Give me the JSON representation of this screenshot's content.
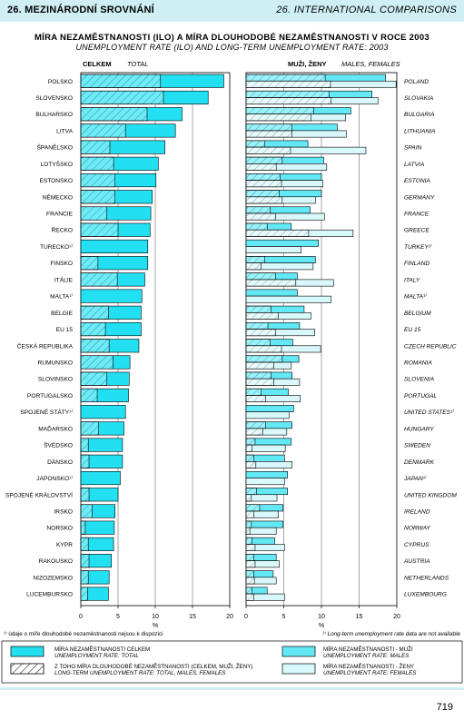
{
  "header": {
    "left": "26. MEZINÁRODNÍ SROVNÁNÍ",
    "right": "26. INTERNATIONAL COMPARISONS"
  },
  "title": "MÍRA NEZAMĚSTNANOSTI (ILO) A MÍRA DLOUHODOBÉ NEZAMĚSTNANOSTI V ROCE 2003",
  "subtitle": "UNEMPLOYMENT RATE (ILO) AND LONG-TERM UNEMPLOYMENT RATE: 2003",
  "page_number": "719",
  "colors": {
    "header_band": "#cfeff4",
    "total_fill": "#22e0f2",
    "males_fill": "#63e9f6",
    "females_fill": "#d8f8fb",
    "outline": "#000000"
  },
  "chart_data": [
    {
      "type": "bar",
      "orientation": "horizontal",
      "panel": "left",
      "header_cz": "CELKEM",
      "header_en": "TOTAL",
      "xlabel": "%",
      "xlim": [
        0,
        20
      ],
      "ticks": [
        "0",
        "5",
        "10",
        "15",
        "20"
      ],
      "categories": [
        "POLSKO",
        "SLOVENSKO",
        "BULHARSKO",
        "LITVA",
        "ŠPANĚLSKO",
        "LOTYŠSKO",
        "ESTONSKO",
        "NĚMECKO",
        "FRANCIE",
        "ŘECKO",
        "TURECKO¹⁾",
        "FINSKO",
        "ITÁLIE",
        "MALTA¹⁾",
        "BELGIE",
        "EU 15",
        "ČESKÁ REPUBLIKA",
        "RUMUNSKO",
        "SLOVINSKO",
        "PORTUGALSKO",
        "SPOJENÉ STÁTY¹⁾",
        "MAĎARSKO",
        "ŠVÉDSKO",
        "DÁNSKO",
        "JAPONSKO¹⁾",
        "SPOJENÉ KRÁLOVSTVÍ",
        "IRSKO",
        "NORSKO",
        "KYPR",
        "RAKOUSKO",
        "NIZOZEMSKO",
        "LUCEMBURSKO"
      ],
      "series": [
        {
          "name": "MÍRA NEZAMĚSTNANOSTI CELKEM",
          "values": [
            19.2,
            17.1,
            13.6,
            12.7,
            11.3,
            10.4,
            10.1,
            9.6,
            9.4,
            9.3,
            9.0,
            9.0,
            8.6,
            8.2,
            8.1,
            8.1,
            7.8,
            6.6,
            6.5,
            6.4,
            6.0,
            5.8,
            5.6,
            5.6,
            5.3,
            5.0,
            4.6,
            4.5,
            4.4,
            4.1,
            3.8,
            3.7
          ]
        },
        {
          "name": "Z TOHO MÍRA DLOUHODOBÉ NEZAMĚSTNANOSTI",
          "values": [
            10.7,
            11.1,
            8.9,
            6.0,
            3.9,
            4.4,
            4.6,
            4.6,
            3.5,
            5.0,
            null,
            2.3,
            4.9,
            null,
            3.7,
            3.3,
            3.8,
            4.3,
            3.5,
            2.2,
            null,
            2.4,
            1.0,
            1.1,
            null,
            1.1,
            1.5,
            0.6,
            1.0,
            1.1,
            1.0,
            0.9
          ]
        }
      ]
    },
    {
      "type": "bar",
      "orientation": "horizontal",
      "panel": "right",
      "header_cz": "MUŽI, ŽENY",
      "header_en": "MALES, FEMALES",
      "xlabel": "%",
      "xlim": [
        0,
        20
      ],
      "ticks": [
        "0",
        "5",
        "10",
        "15",
        "20"
      ],
      "categories": [
        "POLAND",
        "SLOVAKIA",
        "BULGARIA",
        "LITHUANIA",
        "SPAIN",
        "LATVIA",
        "ESTONIA",
        "GERMANY",
        "FRANCE",
        "GREECE",
        "TURKEY¹⁾",
        "FINLAND",
        "ITALY",
        "MALTA¹⁾",
        "BELGIUM",
        "EU 15",
        "CZECH REPUBLIC",
        "ROMANIA",
        "SLOVENIA",
        "PORTUGAL",
        "UNITED STATES¹⁾",
        "HUNGARY",
        "SWEDEN",
        "DENMARK",
        "JAPAN¹⁾",
        "UNITED KINGDOM",
        "IRELAND",
        "NORWAY",
        "CYPRUS",
        "AUSTRIA",
        "NETHERLANDS",
        "LUXEMBOURG"
      ],
      "series": [
        {
          "name": "MÍRA NEZAMĚSTNANOSTI - MUŽI",
          "values": [
            18.5,
            16.7,
            13.9,
            12.1,
            8.2,
            10.3,
            10.0,
            10.0,
            8.5,
            6.0,
            9.6,
            9.2,
            6.8,
            6.8,
            7.7,
            7.1,
            6.2,
            7.0,
            6.1,
            5.6,
            6.3,
            6.1,
            6.0,
            5.1,
            5.5,
            5.5,
            4.9,
            4.9,
            3.8,
            4.0,
            3.6,
            2.8
          ]
        },
        {
          "name": "MÍRA NEZAMĚSTNANOSTI - ŽENY",
          "values": [
            19.9,
            17.5,
            13.2,
            13.3,
            15.9,
            10.7,
            10.2,
            9.2,
            10.4,
            14.2,
            7.3,
            8.9,
            11.6,
            11.3,
            8.6,
            9.1,
            9.9,
            6.0,
            7.1,
            7.2,
            5.7,
            5.4,
            5.2,
            6.1,
            5.1,
            4.1,
            4.3,
            4.0,
            5.1,
            4.4,
            4.0,
            5.1
          ]
        },
        {
          "name": "DLOUHODOBÁ NEZAMĚSTNANOST - MUŽI",
          "values": [
            10.5,
            11.0,
            9.0,
            6.1,
            2.5,
            4.8,
            4.5,
            4.4,
            3.2,
            2.8,
            null,
            2.5,
            3.9,
            null,
            3.3,
            2.9,
            3.2,
            4.8,
            3.3,
            2.0,
            null,
            2.6,
            1.2,
            1.0,
            null,
            1.4,
            1.8,
            0.7,
            0.8,
            1.0,
            1.0,
            0.8
          ]
        },
        {
          "name": "DLOUHODOBÁ NEZAMĚSTNANOST - ŽENY",
          "values": [
            11.2,
            11.3,
            8.6,
            6.1,
            5.9,
            4.0,
            4.7,
            4.8,
            3.9,
            8.3,
            null,
            2.0,
            6.6,
            null,
            4.3,
            3.9,
            4.7,
            3.7,
            3.7,
            2.6,
            null,
            2.2,
            0.8,
            1.3,
            null,
            0.7,
            1.0,
            0.5,
            1.2,
            1.2,
            1.1,
            1.0
          ]
        }
      ]
    }
  ],
  "footnotes": {
    "left": "¹⁾ údaje o míře dlouhodobé nezaměstnanosti nejsou k dispozici",
    "right": "¹⁾ Long-term unemployment rate data are not available"
  },
  "legend": [
    {
      "cz": "MÍRA NEZAMĚSTNANOSTI CELKEM",
      "en": "UNEMPLOYMENT RATE: TOTAL",
      "style": "total"
    },
    {
      "cz": "Z TOHO MÍRA DLOUHODOBÉ NEZAMĚSTNANOSTI (CELKEM, MUŽI, ŽENY)",
      "en": "LONG-TERM UNEMPLOYMENT RATE: TOTAL, MALES, FEMALES",
      "style": "hatch"
    },
    {
      "cz": "MÍRA NEZAMĚSTNANOSTI - MUŽI",
      "en": "UNEMPLOYMENT RATE: MALES",
      "style": "males"
    },
    {
      "cz": "MÍRA NEZAMĚSTNANOSTI - ŽENY",
      "en": "UNEMPLOYMENT RATE: FEMALES",
      "style": "females"
    }
  ]
}
